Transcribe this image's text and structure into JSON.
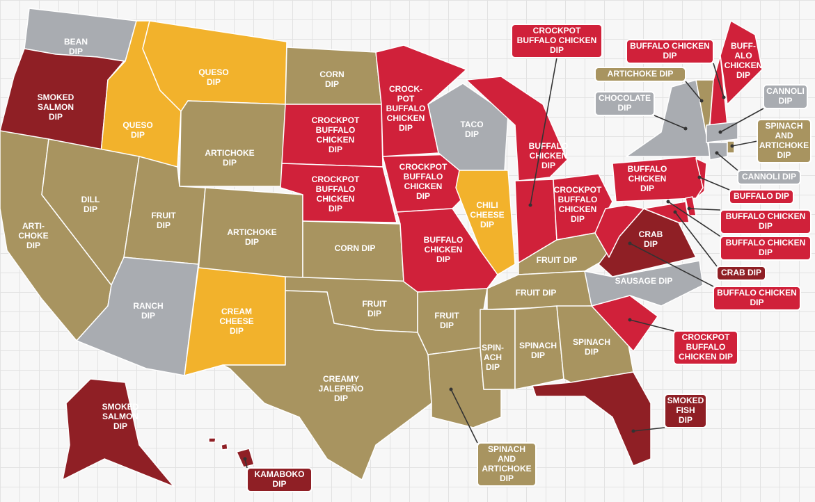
{
  "regions": [
    {
      "label": [
        "BEAN",
        "DIP"
      ],
      "color": "#a9acb1"
    },
    {
      "label": [
        "SMOKED",
        "SALMON",
        "DIP"
      ],
      "color": "#8f1f25"
    },
    {
      "label": [
        "QUESO",
        "DIP"
      ],
      "color": "#f2b22c"
    },
    {
      "label": [
        "QUESO",
        "DIP"
      ],
      "color": "#f2b22c"
    },
    {
      "label": [
        "ARTICHOKE",
        "DIP"
      ],
      "color": "#a89460"
    },
    {
      "label": [
        "ARTI-",
        "CHOKE",
        "DIP"
      ],
      "color": "#a89460"
    },
    {
      "label": [
        "DILL",
        "DIP"
      ],
      "color": "#a89460"
    },
    {
      "label": [
        "FRUIT",
        "DIP"
      ],
      "color": "#a89460"
    },
    {
      "label": [
        "ARTICHOKE",
        "DIP"
      ],
      "color": "#a89460"
    },
    {
      "label": [
        "RANCH",
        "DIP"
      ],
      "color": "#a9acb1"
    },
    {
      "label": [
        "CREAM",
        "CHEESE",
        "DIP"
      ],
      "color": "#f2b22c"
    },
    {
      "label": [
        "CORN",
        "DIP"
      ],
      "color": "#a89460"
    },
    {
      "label": [
        "CROCKPOT",
        "BUFFALO",
        "CHICKEN",
        "DIP"
      ],
      "color": "#d0213a"
    },
    {
      "label": [
        "CROCKPOT",
        "BUFFALO",
        "CHICKEN",
        "DIP"
      ],
      "color": "#d0213a"
    },
    {
      "label": [
        "CORN DIP"
      ],
      "color": "#a89460"
    },
    {
      "label": [
        "FRUIT",
        "DIP"
      ],
      "color": "#a89460"
    },
    {
      "label": [
        "CREAMY",
        "JALEPEÑO",
        "DIP"
      ],
      "color": "#a89460"
    },
    {
      "label": [
        "CROCK-",
        "POT",
        "BUFFALO",
        "CHICKEN",
        "DIP"
      ],
      "color": "#d0213a"
    },
    {
      "label": [
        "CROCKPOT",
        "BUFFALO",
        "CHICKEN",
        "DIP"
      ],
      "color": "#d0213a"
    },
    {
      "label": [
        "BUFFALO",
        "CHICKEN",
        "DIP"
      ],
      "color": "#d0213a"
    },
    {
      "label": [
        "TACO",
        "DIP"
      ],
      "color": "#a9acb1"
    },
    {
      "label": [
        "CHILI",
        "CHEESE",
        "DIP"
      ],
      "color": "#f2b22c"
    },
    {
      "label": [
        "BUFFALO",
        "CHICKEN",
        "DIP"
      ],
      "color": "#d0213a"
    },
    {
      "color": "#d0213a"
    },
    {
      "label": [
        "CROCKPOT",
        "BUFFALO",
        "CHICKEN",
        "DIP"
      ],
      "color": "#d0213a"
    },
    {
      "label": [
        "FRUIT DIP"
      ],
      "color": "#a89460"
    },
    {
      "label": [
        "FRUIT DIP"
      ],
      "color": "#a89460"
    },
    {
      "label": [
        "FRUIT",
        "DIP"
      ],
      "color": "#a89460"
    },
    {
      "color": "#a89460"
    },
    {
      "label": [
        "SPIN-",
        "ACH",
        "DIP"
      ],
      "color": "#a89460"
    },
    {
      "label": [
        "SPINACH",
        "DIP"
      ],
      "color": "#a89460"
    },
    {
      "label": [
        "SPINACH",
        "DIP"
      ],
      "color": "#a89460"
    },
    {
      "color": "#8f1f25"
    },
    {
      "color": "#d0213a"
    },
    {
      "label": [
        "SAUSAGE DIP"
      ],
      "color": "#a9acb1"
    },
    {
      "label": [
        "CRAB",
        "DIP"
      ],
      "color": "#8f1f25"
    },
    {
      "color": "#d0213a"
    },
    {
      "label": [
        "BUFFALO",
        "CHICKEN",
        "DIP"
      ],
      "color": "#d0213a"
    },
    {
      "color": "#a9acb1"
    },
    {
      "color": "#d0213a"
    },
    {
      "color": "#d0213a"
    },
    {
      "color": "#d0213a"
    },
    {
      "color": "#a89460"
    },
    {
      "color": "#d0213a"
    },
    {
      "label": [
        "BUFF-",
        "ALO",
        "CHICKEN",
        "DIP"
      ],
      "color": "#d0213a"
    },
    {
      "color": "#a9acb1"
    },
    {
      "color": "#a9acb1"
    },
    {
      "color": "#a89460"
    },
    {
      "label": [
        "SMOKED",
        "SALMON",
        "DIP"
      ],
      "color": "#8f1f25"
    },
    {
      "color": "#8f1f25"
    }
  ],
  "callouts": [
    {
      "label": [
        "CROCKPOT",
        "BUFFALO CHICKEN",
        "DIP"
      ],
      "color": "#d0213a"
    },
    {
      "label": [
        "BUFFALO CHICKEN",
        "DIP"
      ],
      "color": "#d0213a"
    },
    {
      "label": [
        "ARTICHOKE DIP"
      ],
      "color": "#a89460"
    },
    {
      "label": [
        "CHOCOLATE",
        "DIP"
      ],
      "color": "#a9acb1"
    },
    {
      "label": [
        "CANNOLI",
        "DIP"
      ],
      "color": "#a9acb1"
    },
    {
      "label": [
        "SPINACH",
        "AND",
        "ARTICHOKE",
        "DIP"
      ],
      "color": "#a89460"
    },
    {
      "label": [
        "CANNOLI DIP"
      ],
      "color": "#a9acb1"
    },
    {
      "label": [
        "BUFFALO DIP"
      ],
      "color": "#d0213a"
    },
    {
      "label": [
        "BUFFALO CHICKEN",
        "DIP"
      ],
      "color": "#d0213a"
    },
    {
      "label": [
        "BUFFALO CHICKEN",
        "DIP"
      ],
      "color": "#d0213a"
    },
    {
      "label": [
        "CRAB DIP"
      ],
      "color": "#8f1f25"
    },
    {
      "label": [
        "BUFFALO CHICKEN",
        "DIP"
      ],
      "color": "#d0213a"
    },
    {
      "label": [
        "CROCKPOT",
        "BUFFALO",
        "CHICKEN DIP"
      ],
      "color": "#d0213a"
    },
    {
      "label": [
        "SMOKED",
        "FISH",
        "DIP"
      ],
      "color": "#8f1f25"
    },
    {
      "label": [
        "SPINACH",
        "AND",
        "ARTICHOKE",
        "DIP"
      ],
      "color": "#a89460"
    },
    {
      "label": [
        "KAMABOKO",
        "DIP"
      ],
      "color": "#8f1f25"
    }
  ]
}
